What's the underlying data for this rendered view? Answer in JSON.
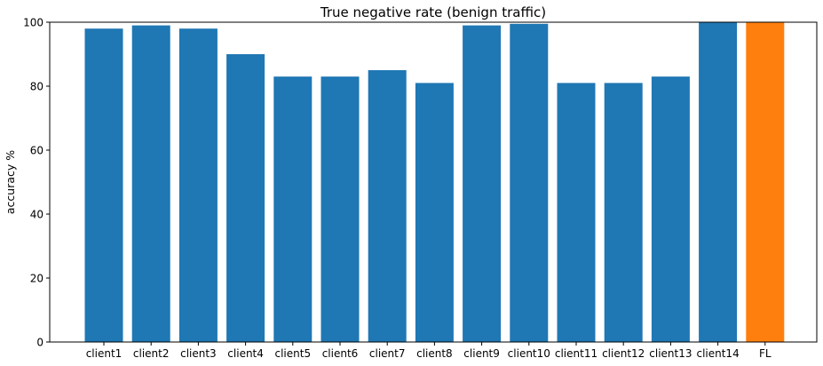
{
  "chart_data": {
    "type": "bar",
    "title": "True negative rate (benign traffic)",
    "xlabel": "",
    "ylabel": "accuracy %",
    "ylim": [
      0,
      100
    ],
    "yticks": [
      0,
      20,
      40,
      60,
      80,
      100
    ],
    "ytick_labels": [
      "0",
      "20",
      "40",
      "60",
      "80",
      "100"
    ],
    "categories": [
      "client1",
      "client2",
      "client3",
      "client4",
      "client5",
      "client6",
      "client7",
      "client8",
      "client9",
      "client10",
      "client11",
      "client12",
      "client13",
      "client14",
      "FL"
    ],
    "values": [
      98,
      99,
      98,
      90,
      83,
      83,
      85,
      81,
      99,
      99.5,
      81,
      81,
      83,
      100,
      100
    ],
    "colors": [
      "#1f77b4",
      "#1f77b4",
      "#1f77b4",
      "#1f77b4",
      "#1f77b4",
      "#1f77b4",
      "#1f77b4",
      "#1f77b4",
      "#1f77b4",
      "#1f77b4",
      "#1f77b4",
      "#1f77b4",
      "#1f77b4",
      "#1f77b4",
      "#ff7f0e"
    ],
    "grid": false,
    "legend": "none"
  }
}
